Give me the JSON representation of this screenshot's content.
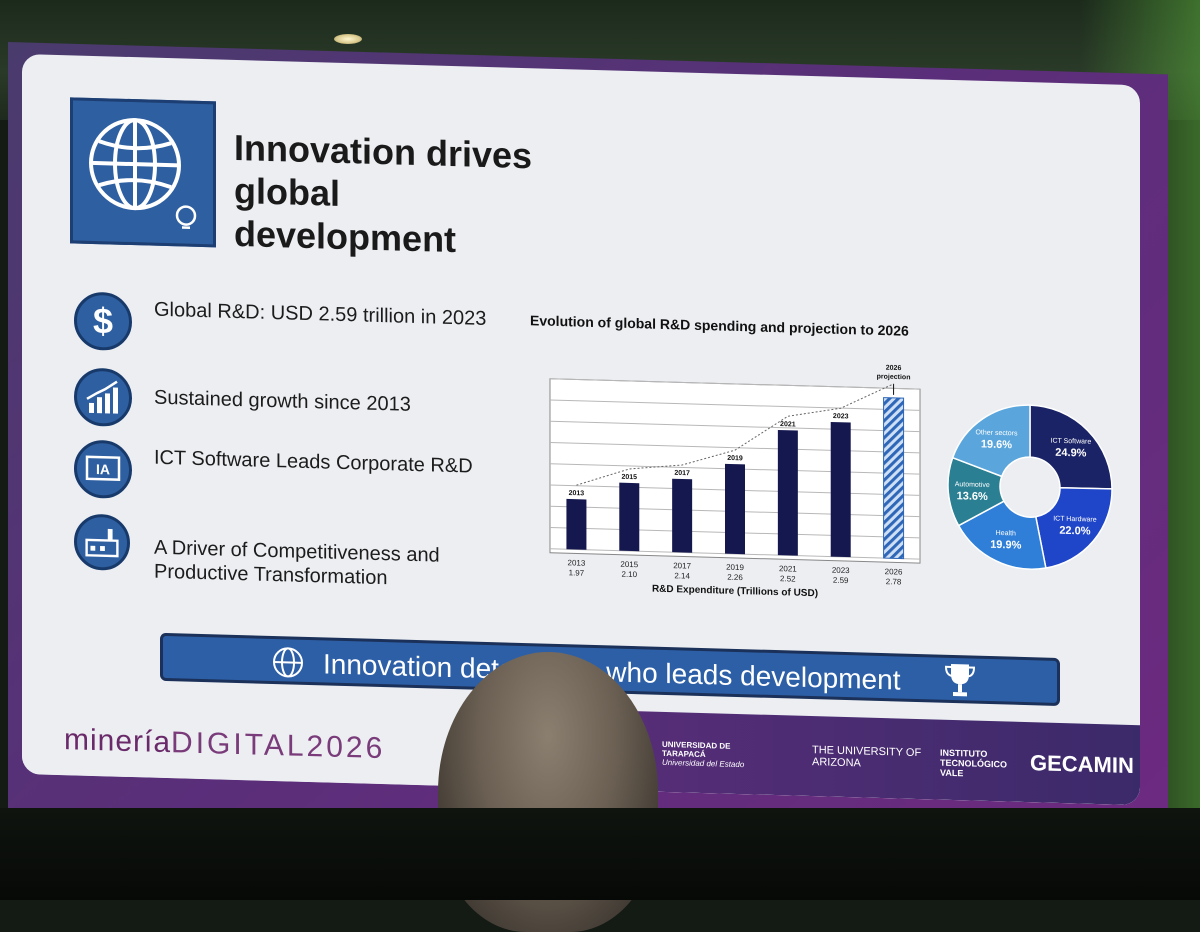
{
  "slide": {
    "title": "Innovation drives global development",
    "bullets": [
      {
        "icon": "dollar-icon",
        "text": "Global R&D: USD 2.59 trillion in 2023"
      },
      {
        "icon": "growth-chart-icon",
        "text": "Sustained growth since 2013"
      },
      {
        "icon": "ia-screen-icon",
        "text": "ICT Software Leads Corporate R&D"
      },
      {
        "icon": "factory-icon",
        "text": "A Driver of Competitiveness and Productive Transformation"
      }
    ],
    "banner": "Innovation determines who leads development",
    "brand_left": "minería",
    "brand_right": "DIGITAL2026",
    "sponsors": [
      "UNIVERSIDAD DE TARAPACÁ",
      "Universidad del Estado",
      "THE UNIVERSITY OF ARIZONA",
      "INSTITUTO TECNOLÓGICO VALE",
      "GECAMIN"
    ]
  },
  "chart_data": [
    {
      "type": "bar",
      "title": "Evolution of global R&D spending and projection to 2026",
      "xlabel": "R&D Expenditure (Trillions of USD)",
      "categories": [
        "2013",
        "2015",
        "2017",
        "2019",
        "2021",
        "2023",
        "2026"
      ],
      "values": [
        1.97,
        2.1,
        2.14,
        2.26,
        2.52,
        2.59,
        2.78
      ],
      "value_labels": [
        "1.97",
        "2.10",
        "2.14",
        "2.26",
        "2.52",
        "2.59",
        "2.78"
      ],
      "annotation": "2026 projection",
      "projected_index": 6,
      "colors": {
        "bar": "#15184f",
        "projection": "#2f67b8"
      }
    },
    {
      "type": "pie",
      "categories": [
        "ICT Software",
        "ICT Hardware",
        "Health",
        "Automotive",
        "Other sectors"
      ],
      "values": [
        24.9,
        22.0,
        19.9,
        13.6,
        19.6
      ],
      "labels": [
        "24.9%",
        "22.0%",
        "19.9%",
        "13.6%",
        "19.6%"
      ],
      "colors": [
        "#1a2366",
        "#1f45c8",
        "#2f7fd8",
        "#2a7f93",
        "#5aa6dc"
      ]
    }
  ]
}
